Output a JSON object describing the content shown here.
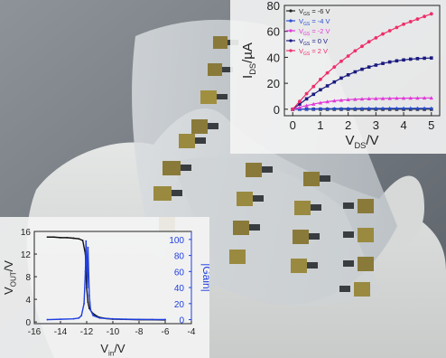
{
  "colors": {
    "photo_bg": "#7a7f86",
    "glove": "#dcdedd",
    "film": "#c9cdd0",
    "pad_gold": "#8a7a3a",
    "pad_metal": "#3a3d40",
    "inset_bg": "#f4f4f4"
  },
  "chart_data": [
    {
      "type": "line",
      "title": "",
      "xlabel_main": "V",
      "xlabel_sub": "DS",
      "xlabel_tail": "/V",
      "ylabel_main": "I",
      "ylabel_sub": "DS",
      "ylabel_tail": "/µA",
      "xlim": [
        -0.3,
        5.3
      ],
      "ylim": [
        -5,
        80
      ],
      "xticks": [
        0,
        1,
        2,
        3,
        4,
        5
      ],
      "yticks": [
        0,
        20,
        40,
        60,
        80
      ],
      "grid": false,
      "legend_position": "top-left",
      "series": [
        {
          "name": "V_GS = -6 V",
          "label_main": "V",
          "label_sub": "GS",
          "label_tail": " = -6 V",
          "color": "#222222",
          "marker": "square",
          "x": [
            0,
            0.25,
            0.5,
            0.75,
            1,
            1.25,
            1.5,
            1.75,
            2,
            2.25,
            2.5,
            2.75,
            3,
            3.25,
            3.5,
            3.75,
            4,
            4.25,
            4.5,
            4.75,
            5
          ],
          "y": [
            0,
            0,
            0,
            0,
            0,
            0,
            0,
            0,
            0,
            0,
            0,
            0,
            0,
            0,
            0,
            0,
            0,
            0,
            0,
            0,
            0
          ]
        },
        {
          "name": "V_GS = -4 V",
          "label_main": "V",
          "label_sub": "GS",
          "label_tail": " = -4 V",
          "color": "#2a4fd6",
          "marker": "triangle",
          "x": [
            0,
            0.25,
            0.5,
            0.75,
            1,
            1.25,
            1.5,
            1.75,
            2,
            2.25,
            2.5,
            2.75,
            3,
            3.25,
            3.5,
            3.75,
            4,
            4.25,
            4.5,
            4.75,
            5
          ],
          "y": [
            0,
            0.1,
            0.2,
            0.3,
            0.4,
            0.45,
            0.5,
            0.55,
            0.6,
            0.62,
            0.65,
            0.67,
            0.7,
            0.72,
            0.74,
            0.76,
            0.78,
            0.8,
            0.8,
            0.8,
            0.8
          ]
        },
        {
          "name": "V_GS = -2 V",
          "label_main": "V",
          "label_sub": "GS",
          "label_tail": " = -2 V",
          "color": "#e03ad8",
          "marker": "triangle",
          "x": [
            0,
            0.25,
            0.5,
            0.75,
            1,
            1.25,
            1.5,
            1.75,
            2,
            2.25,
            2.5,
            2.75,
            3,
            3.25,
            3.5,
            3.75,
            4,
            4.25,
            4.5,
            4.75,
            5
          ],
          "y": [
            0,
            1.5,
            2.8,
            4.0,
            5.0,
            5.8,
            6.5,
            7.0,
            7.4,
            7.7,
            7.9,
            8.1,
            8.2,
            8.3,
            8.4,
            8.5,
            8.5,
            8.6,
            8.6,
            8.7,
            8.7
          ]
        },
        {
          "name": "V_GS = 0 V",
          "label_main": "V",
          "label_sub": "GS",
          "label_tail": " = 0 V",
          "color": "#1a1a80",
          "marker": "square",
          "x": [
            0,
            0.25,
            0.5,
            0.75,
            1,
            1.25,
            1.5,
            1.75,
            2,
            2.25,
            2.5,
            2.75,
            3,
            3.25,
            3.5,
            3.75,
            4,
            4.25,
            4.5,
            4.75,
            5
          ],
          "y": [
            0,
            4,
            8,
            11.5,
            15,
            18,
            21,
            24,
            26.5,
            28.8,
            30.8,
            32.5,
            34,
            35.3,
            36.4,
            37.3,
            38,
            38.6,
            39,
            39.3,
            39.5
          ]
        },
        {
          "name": "V_GS = 2 V",
          "label_main": "V",
          "label_sub": "GS",
          "label_tail": " = 2 V",
          "color": "#ee2e6a",
          "marker": "circle",
          "x": [
            0,
            0.25,
            0.5,
            0.75,
            1,
            1.25,
            1.5,
            1.75,
            2,
            2.25,
            2.5,
            2.75,
            3,
            3.25,
            3.5,
            3.75,
            4,
            4.25,
            4.5,
            4.75,
            5
          ],
          "y": [
            0,
            6,
            12,
            17.5,
            23,
            28,
            32.5,
            37,
            41,
            45,
            48.5,
            52,
            55,
            58,
            60.5,
            63,
            65.5,
            67.5,
            69.5,
            71.5,
            73.5
          ]
        }
      ]
    },
    {
      "type": "line",
      "title": "",
      "xlabel_main": "V",
      "xlabel_sub": "in",
      "xlabel_tail": "/V",
      "ylabel_left_main": "V",
      "ylabel_left_sub": "OUT",
      "ylabel_left_tail": "/V",
      "ylabel_right": "|Gain|",
      "xlim": [
        -16,
        -4
      ],
      "ylim_left": [
        -0.3,
        16
      ],
      "ylim_right": [
        -5,
        110
      ],
      "xticks": [
        -16,
        -14,
        -12,
        -10,
        -8,
        -6,
        -4
      ],
      "yticks_left": [
        0,
        4,
        8,
        12,
        16
      ],
      "yticks_right": [
        0,
        20,
        40,
        60,
        80,
        100
      ],
      "grid": false,
      "series": [
        {
          "name": "V_OUT",
          "color": "#111111",
          "axis": "left",
          "x": [
            -15.0,
            -14.5,
            -14.0,
            -13.5,
            -13.0,
            -12.6,
            -12.3,
            -12.1,
            -12.0,
            -11.9,
            -11.8,
            -11.6,
            -11.4,
            -11.2,
            -11.0,
            -10.5,
            -10.0,
            -9.0,
            -8.0,
            -7.0,
            -6.0
          ],
          "y": [
            15.0,
            15.0,
            14.9,
            14.9,
            14.8,
            14.7,
            14.4,
            12.0,
            6.0,
            3.5,
            2.4,
            1.7,
            1.3,
            1.0,
            0.8,
            0.6,
            0.5,
            0.45,
            0.4,
            0.4,
            0.35
          ]
        },
        {
          "name": "|Gain|",
          "color": "#1f3fe0",
          "axis": "right",
          "x": [
            -15.0,
            -14.0,
            -13.0,
            -12.6,
            -12.4,
            -12.2,
            -12.1,
            -12.05,
            -12.0,
            -11.95,
            -11.9,
            -11.8,
            -11.7,
            -11.5,
            -11.0,
            -10.0,
            -9.0,
            -8.0,
            -7.0,
            -6.0
          ],
          "y": [
            0,
            0.5,
            1,
            2,
            5,
            20,
            60,
            98,
            75,
            40,
            90,
            30,
            12,
            5,
            2,
            1,
            0.5,
            0.3,
            0.2,
            0.2
          ]
        }
      ]
    }
  ]
}
